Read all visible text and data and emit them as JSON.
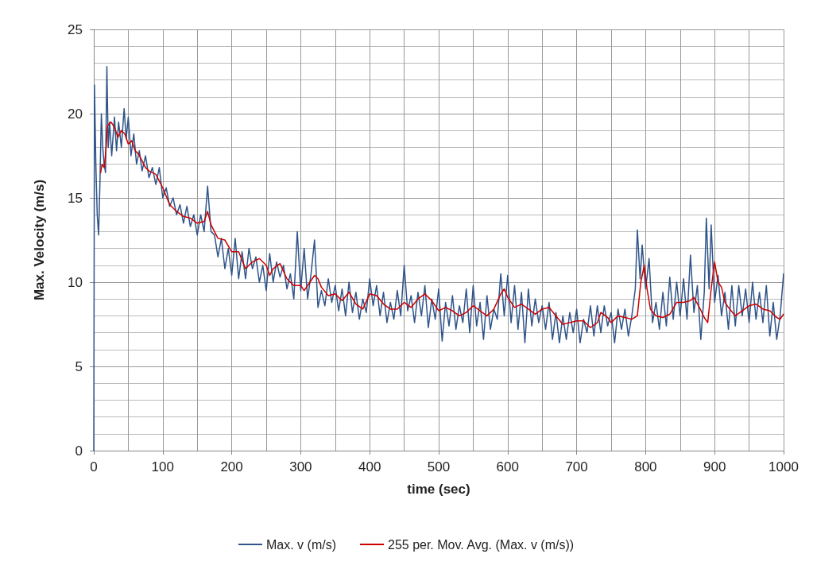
{
  "chart_data": {
    "type": "line",
    "xlabel": "time (sec)",
    "ylabel": "Max. Velocity (m/s)",
    "xlim": [
      0,
      1000
    ],
    "xticks": [
      0,
      100,
      200,
      300,
      400,
      500,
      600,
      700,
      800,
      900,
      1000
    ],
    "ylim": [
      0,
      25
    ],
    "yticks": [
      0,
      5,
      10,
      15,
      20,
      25
    ],
    "grid": true,
    "legend": "bottom",
    "marker": "none",
    "line_style": "solid",
    "series": [
      {
        "name": "Max. v (m/s)",
        "color": "#2f5489",
        "x": [
          0,
          1,
          3,
          5,
          7,
          9,
          11,
          13,
          15,
          17,
          19,
          21,
          23,
          26,
          30,
          33,
          36,
          40,
          44,
          47,
          50,
          54,
          58,
          62,
          66,
          70,
          75,
          80,
          85,
          90,
          95,
          100,
          105,
          110,
          115,
          120,
          125,
          130,
          135,
          140,
          145,
          150,
          155,
          160,
          165,
          170,
          175,
          180,
          185,
          190,
          195,
          200,
          205,
          210,
          215,
          220,
          225,
          230,
          235,
          240,
          245,
          250,
          255,
          260,
          265,
          270,
          275,
          280,
          285,
          290,
          295,
          300,
          305,
          310,
          315,
          320,
          325,
          330,
          335,
          340,
          345,
          350,
          355,
          360,
          365,
          370,
          375,
          380,
          385,
          390,
          395,
          400,
          405,
          410,
          415,
          420,
          425,
          430,
          435,
          440,
          445,
          450,
          455,
          460,
          465,
          470,
          475,
          480,
          485,
          490,
          495,
          500,
          505,
          510,
          515,
          520,
          525,
          530,
          535,
          540,
          545,
          550,
          555,
          560,
          565,
          570,
          575,
          580,
          585,
          590,
          595,
          600,
          605,
          610,
          615,
          620,
          625,
          630,
          635,
          640,
          645,
          650,
          655,
          660,
          665,
          670,
          675,
          680,
          685,
          690,
          695,
          700,
          705,
          710,
          715,
          720,
          725,
          730,
          735,
          740,
          745,
          750,
          755,
          760,
          765,
          770,
          775,
          780,
          785,
          788,
          792,
          795,
          800,
          805,
          810,
          815,
          820,
          825,
          830,
          835,
          840,
          845,
          850,
          855,
          860,
          865,
          870,
          875,
          880,
          885,
          888,
          892,
          895,
          900,
          905,
          910,
          915,
          920,
          925,
          930,
          935,
          940,
          945,
          950,
          955,
          960,
          965,
          970,
          975,
          980,
          985,
          990,
          995,
          1000
        ],
        "values": [
          0,
          21.7,
          17,
          14,
          12.8,
          16,
          20,
          18,
          17,
          16.5,
          22.8,
          18,
          19.5,
          17.5,
          19.8,
          17.8,
          19.5,
          18,
          20.3,
          18.5,
          19.8,
          17.5,
          18.8,
          17,
          17.8,
          16.6,
          17.5,
          16.2,
          16.8,
          15.8,
          16.8,
          15,
          15.6,
          14.5,
          15,
          14,
          14.6,
          13.5,
          14.5,
          13.3,
          14,
          12.8,
          14,
          13,
          15.7,
          13,
          12.8,
          11.5,
          12.6,
          10.8,
          12,
          10.4,
          12.6,
          10.2,
          11.8,
          10.2,
          12,
          10.8,
          11.5,
          10,
          11,
          9.5,
          11.7,
          10,
          11.2,
          10.3,
          11,
          9.6,
          10.5,
          9,
          13,
          9.5,
          12,
          9,
          10.5,
          12.5,
          8.5,
          9.5,
          8.6,
          10.2,
          8.8,
          9.8,
          8.3,
          9.6,
          8,
          10,
          8.2,
          9.4,
          7.8,
          9,
          8.2,
          10.2,
          8.6,
          9.8,
          8,
          9.4,
          7.6,
          8.8,
          7.8,
          9.5,
          8,
          11,
          8.3,
          9.2,
          7.6,
          9.4,
          8,
          9.8,
          7.3,
          9,
          7.8,
          9.6,
          6.5,
          8.8,
          7.4,
          9.2,
          7.2,
          8.6,
          7.6,
          9.6,
          7,
          9.8,
          7.4,
          8.8,
          6.6,
          9.2,
          7.2,
          8.4,
          7.8,
          10.5,
          8,
          10.4,
          7.6,
          9.8,
          7.2,
          9.4,
          6.4,
          9.6,
          7.4,
          9,
          7.6,
          8.6,
          7.2,
          8.8,
          6.6,
          8.2,
          6.4,
          8,
          6.6,
          8.2,
          7,
          8.4,
          6.4,
          7.8,
          7,
          8.6,
          6.8,
          8.6,
          7,
          8.6,
          7.4,
          8.2,
          6.4,
          8.4,
          7.2,
          8.4,
          6.8,
          8,
          9.6,
          13.1,
          10.2,
          12.2,
          9.6,
          11.4,
          7.6,
          8.8,
          7.2,
          9.4,
          7.4,
          10.3,
          7.8,
          10,
          8,
          10.2,
          7.8,
          11.6,
          8.2,
          9.8,
          6.6,
          9.4,
          13.8,
          9.6,
          13.4,
          8.8,
          10.4,
          8,
          9.4,
          7.2,
          9.8,
          7.4,
          9.8,
          8,
          9.6,
          7.6,
          10,
          7.8,
          9.4,
          7.6,
          9.8,
          6.8,
          8.8,
          6.6,
          8,
          10.5
        ]
      },
      {
        "name": "255 per. Mov. Avg. (Max. v (m/s))",
        "color": "#cc0000",
        "x": [
          10,
          12,
          15,
          18,
          20,
          25,
          30,
          35,
          40,
          45,
          50,
          55,
          60,
          65,
          70,
          75,
          80,
          90,
          100,
          110,
          120,
          130,
          140,
          150,
          160,
          165,
          170,
          180,
          190,
          200,
          210,
          220,
          230,
          240,
          250,
          255,
          260,
          270,
          280,
          290,
          300,
          305,
          310,
          320,
          325,
          330,
          340,
          350,
          360,
          370,
          380,
          390,
          400,
          410,
          420,
          430,
          440,
          450,
          460,
          470,
          480,
          490,
          500,
          510,
          520,
          530,
          540,
          550,
          560,
          570,
          580,
          590,
          595,
          600,
          610,
          620,
          630,
          640,
          650,
          660,
          670,
          680,
          690,
          700,
          710,
          720,
          730,
          735,
          745,
          750,
          760,
          770,
          780,
          788,
          793,
          798,
          802,
          807,
          815,
          825,
          835,
          845,
          855,
          865,
          870,
          878,
          885,
          890,
          895,
          900,
          905,
          910,
          915,
          920,
          930,
          940,
          950,
          960,
          970,
          980,
          990,
          995,
          1000
        ],
        "values": [
          16.5,
          17,
          16.8,
          18,
          19.3,
          19.5,
          19.2,
          18.6,
          19,
          18.8,
          18.2,
          18.4,
          17.8,
          17.6,
          17.2,
          16.8,
          16.6,
          16.4,
          15.6,
          14.6,
          14.2,
          13.9,
          13.8,
          13.5,
          13.6,
          14.2,
          13.4,
          12.6,
          12.5,
          11.8,
          11.8,
          10.8,
          11.2,
          11.4,
          11,
          10.4,
          10.8,
          11.1,
          10.2,
          9.8,
          9.8,
          9.5,
          9.8,
          10.4,
          10.2,
          9.7,
          9.2,
          9.3,
          8.9,
          9.4,
          8.7,
          8.4,
          9.3,
          9.2,
          8.7,
          8.4,
          8.4,
          8.8,
          8.5,
          9,
          9.3,
          8.9,
          8.3,
          8.5,
          8.3,
          8,
          8.2,
          8.6,
          8.3,
          8,
          8.4,
          9.3,
          9.6,
          9.1,
          8.5,
          8.7,
          8.4,
          8.1,
          8.4,
          8.5,
          8,
          7.5,
          7.6,
          7.7,
          7.7,
          7.3,
          7.6,
          8.2,
          7.9,
          7.6,
          8,
          7.9,
          7.8,
          8,
          10,
          11,
          9.6,
          8.4,
          8,
          7.9,
          8.1,
          8.8,
          8.8,
          8.9,
          9.1,
          8.5,
          7.9,
          7.6,
          9.6,
          11.2,
          10,
          9.7,
          8.8,
          8.5,
          8,
          8.3,
          8.6,
          8.7,
          8.4,
          8.3,
          7.9,
          7.8,
          8.1
        ]
      }
    ]
  }
}
